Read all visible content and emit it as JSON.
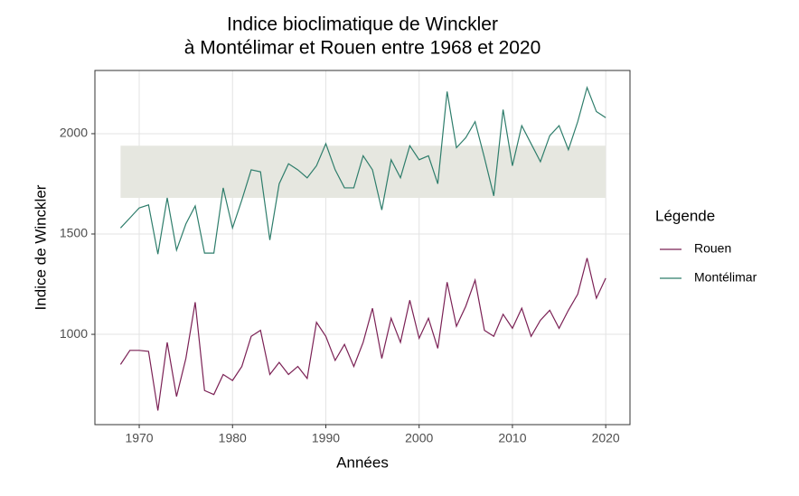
{
  "chart_data": {
    "type": "line",
    "title": "Indice bioclimatique de Winckler",
    "subtitle": "à Montélimar et Rouen entre 1968 et 2020",
    "x_label": "Années",
    "y_label": "Indice de Winckler",
    "legend_title": "Légende",
    "legend_position": "right",
    "grid": true,
    "x": [
      1968,
      1969,
      1970,
      1971,
      1972,
      1973,
      1974,
      1975,
      1976,
      1977,
      1978,
      1979,
      1980,
      1981,
      1982,
      1983,
      1984,
      1985,
      1986,
      1987,
      1988,
      1989,
      1990,
      1991,
      1992,
      1993,
      1994,
      1995,
      1996,
      1997,
      1998,
      1999,
      2000,
      2001,
      2002,
      2003,
      2004,
      2005,
      2006,
      2007,
      2008,
      2009,
      2010,
      2011,
      2012,
      2013,
      2014,
      2015,
      2016,
      2017,
      2018,
      2019,
      2020
    ],
    "series": [
      {
        "name": "Rouen",
        "color": "#7b2155",
        "values": [
          850,
          920,
          920,
          915,
          620,
          960,
          690,
          880,
          1160,
          720,
          700,
          800,
          770,
          840,
          990,
          1020,
          800,
          860,
          800,
          840,
          780,
          1060,
          990,
          870,
          950,
          840,
          960,
          1130,
          880,
          1080,
          960,
          1170,
          980,
          1080,
          930,
          1260,
          1040,
          1140,
          1270,
          1020,
          990,
          1100,
          1030,
          1130,
          990,
          1070,
          1120,
          1030,
          1120,
          1200,
          1380,
          1180,
          1280
        ]
      },
      {
        "name": "Montélimar",
        "color": "#2e7d6b",
        "values": [
          1530,
          1580,
          1630,
          1645,
          1400,
          1680,
          1420,
          1550,
          1640,
          1405,
          1405,
          1730,
          1530,
          1670,
          1820,
          1810,
          1470,
          1750,
          1850,
          1820,
          1780,
          1840,
          1950,
          1820,
          1730,
          1730,
          1890,
          1820,
          1620,
          1870,
          1780,
          1940,
          1870,
          1890,
          1750,
          2210,
          1930,
          1980,
          2060,
          1880,
          1690,
          2120,
          1840,
          2040,
          1950,
          1860,
          1990,
          2040,
          1920,
          2060,
          2230,
          2110,
          2080
        ]
      }
    ],
    "band": {
      "xmin": 1968,
      "xmax": 2020,
      "ymin": 1680,
      "ymax": 1940,
      "color": "#e6e7e0"
    },
    "xlim": [
      1965.25,
      2022.6
    ],
    "ylim": [
      550,
      2315
    ],
    "xticks": [
      1970,
      1980,
      1990,
      2000,
      2010,
      2020
    ],
    "yticks": [
      1000,
      1500,
      2000
    ]
  }
}
